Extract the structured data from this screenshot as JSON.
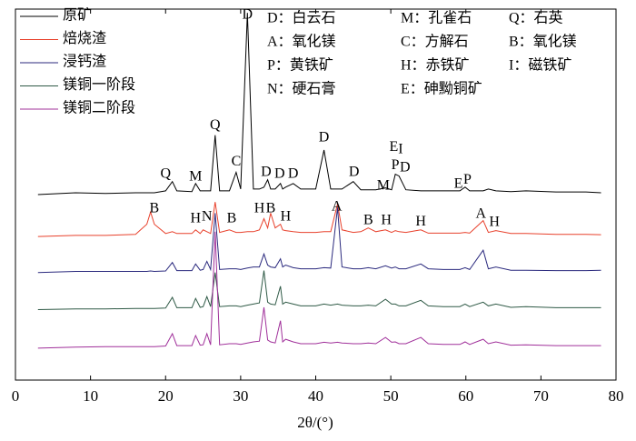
{
  "chart_data": {
    "type": "line",
    "xlabel": "2θ/(°)",
    "xlim": [
      0,
      80
    ],
    "ylim": [
      0,
      100
    ],
    "xticks": [
      0,
      10,
      20,
      30,
      40,
      50,
      60,
      70,
      80
    ],
    "legend": "upper left",
    "x": [
      3,
      8,
      12,
      16,
      17.5,
      18,
      18.5,
      20,
      20.9,
      21.5,
      23.5,
      24,
      24.6,
      25,
      25.5,
      26,
      26.6,
      27.2,
      28.5,
      29.4,
      30,
      30.9,
      31.7,
      32.5,
      33.1,
      33.6,
      34,
      34.6,
      35.3,
      35.6,
      36,
      37,
      38,
      40,
      41.1,
      42,
      42.9,
      43.5,
      45,
      46,
      47,
      48,
      49.3,
      50.1,
      50.6,
      51.1,
      52,
      54,
      55,
      57,
      59.2,
      59.9,
      60.5,
      62.3,
      63,
      64,
      66,
      68,
      72,
      76,
      78
    ],
    "series": [
      {
        "name": "原矿",
        "color": "#000000",
        "values": [
          50,
          50.5,
          50.3,
          50.5,
          50.5,
          50.5,
          50.5,
          51,
          53.5,
          51,
          50.8,
          53,
          51,
          51,
          51,
          51,
          66,
          51,
          51,
          56,
          51.5,
          99,
          51.5,
          51.5,
          52,
          54,
          51.5,
          51.5,
          53,
          51.5,
          52,
          53,
          51.5,
          51.5,
          62,
          51.5,
          51.5,
          51.5,
          53.5,
          51.3,
          51.3,
          51.3,
          51.8,
          51.3,
          55.5,
          55,
          51.3,
          51,
          51,
          51,
          51,
          52,
          51,
          51,
          51.5,
          51,
          50.8,
          51,
          50.7,
          50.7,
          50.5
        ]
      },
      {
        "name": "焙烧渣",
        "color": "#e8412c",
        "values": [
          38.7,
          39,
          39,
          39.3,
          42,
          45.3,
          42,
          39.5,
          40,
          39.5,
          39.5,
          40.5,
          39.5,
          40.5,
          40,
          39.5,
          48,
          39.8,
          40.5,
          39.8,
          39.8,
          40,
          40,
          40.5,
          43.5,
          41,
          45,
          41,
          42,
          40.5,
          40.3,
          40,
          39.8,
          39.8,
          40,
          40,
          47.5,
          40.5,
          39.8,
          40,
          41,
          40,
          40.5,
          39.8,
          40.3,
          40,
          39.8,
          40.5,
          39.6,
          39.6,
          39.6,
          39.8,
          39.6,
          43,
          39.8,
          40.3,
          39.5,
          39.5,
          39.3,
          39.3,
          39.2
        ]
      },
      {
        "name": "浸钙渣",
        "color": "#2b2a7e",
        "values": [
          29,
          29.3,
          29.3,
          29.3,
          29.3,
          29.4,
          29.3,
          29.4,
          31.7,
          29.5,
          29.5,
          31.3,
          29.6,
          29.8,
          32,
          29.8,
          45,
          29.8,
          30,
          30,
          29.8,
          30.2,
          30.5,
          30.5,
          34,
          31,
          30.5,
          30.3,
          32.7,
          30.5,
          31,
          30.3,
          30,
          30,
          30.3,
          30.2,
          46.5,
          30.5,
          30,
          30,
          30.3,
          30,
          30.8,
          30.2,
          30.5,
          30,
          30,
          31.3,
          30,
          29.8,
          29.8,
          30.3,
          29.8,
          35,
          30,
          30.5,
          29.6,
          29.6,
          29.5,
          29.5,
          29.6
        ]
      },
      {
        "name": "镁铜一阶段",
        "color": "#2f5a46",
        "values": [
          19,
          19.2,
          19.2,
          19.3,
          19.3,
          19.3,
          19.3,
          19.4,
          22.3,
          19.5,
          19.5,
          22,
          19.6,
          19.8,
          22.5,
          19.8,
          29,
          19.8,
          20,
          20,
          19.8,
          20.2,
          20.5,
          20.8,
          29.5,
          21,
          20.5,
          20.3,
          25.3,
          20.5,
          21,
          20.5,
          20,
          20,
          20.5,
          20.2,
          20.5,
          20.2,
          20,
          20,
          20.2,
          20,
          21.8,
          20.5,
          20.5,
          20,
          20,
          21.5,
          20,
          19.8,
          19.8,
          20.5,
          19.8,
          21,
          20,
          20.5,
          19.6,
          19.8,
          19.5,
          19.5,
          19.5
        ]
      },
      {
        "name": "镁铜二阶段",
        "color": "#a0309a",
        "values": [
          8.6,
          8.9,
          9,
          9,
          9,
          9,
          9,
          9.2,
          12.5,
          9.3,
          9.3,
          12,
          9.4,
          9.5,
          12.5,
          9.5,
          40,
          9.5,
          9.8,
          9.8,
          9.6,
          10,
          10.3,
          10.5,
          19.6,
          10.8,
          10.3,
          10,
          16,
          10.3,
          11,
          10.3,
          9.8,
          9.8,
          10.2,
          10,
          10.2,
          10,
          9.8,
          9.8,
          10,
          9.8,
          11.5,
          10.2,
          10.3,
          9.8,
          9.8,
          11.5,
          9.8,
          9.6,
          9.6,
          10.3,
          9.6,
          11,
          9.8,
          10.3,
          9.4,
          9.5,
          9.3,
          9.3,
          9.3
        ]
      }
    ],
    "annotations": [
      {
        "label": "Q",
        "x": 20,
        "y": 55.4
      },
      {
        "label": "M",
        "x": 24,
        "y": 54.7
      },
      {
        "label": "Q",
        "x": 26.6,
        "y": 68.6
      },
      {
        "label": "C",
        "x": 29.4,
        "y": 58.8
      },
      {
        "label": "D",
        "x": 30.9,
        "y": 98.3
      },
      {
        "label": "D",
        "x": 33.4,
        "y": 55.9
      },
      {
        "label": "D",
        "x": 35.2,
        "y": 55.4
      },
      {
        "label": "D",
        "x": 37,
        "y": 55.4
      },
      {
        "label": "D",
        "x": 41.1,
        "y": 65.2
      },
      {
        "label": "D",
        "x": 45.1,
        "y": 55.9
      },
      {
        "label": "M",
        "x": 49,
        "y": 52.2
      },
      {
        "label": "E",
        "x": 50.4,
        "y": 62.7
      },
      {
        "label": "I",
        "x": 51.3,
        "y": 62
      },
      {
        "label": "P",
        "x": 50.6,
        "y": 57.8
      },
      {
        "label": "D",
        "x": 51.9,
        "y": 57.1
      },
      {
        "label": "E",
        "x": 59,
        "y": 52.7
      },
      {
        "label": "P",
        "x": 60.2,
        "y": 53.9
      },
      {
        "label": "B",
        "x": 18.5,
        "y": 46.1
      },
      {
        "label": "H",
        "x": 24,
        "y": 43.4
      },
      {
        "label": "N",
        "x": 25.5,
        "y": 43.9
      },
      {
        "label": "B",
        "x": 28.8,
        "y": 43.4
      },
      {
        "label": "H",
        "x": 32.5,
        "y": 46.1
      },
      {
        "label": "B",
        "x": 34,
        "y": 46.1
      },
      {
        "label": "H",
        "x": 36,
        "y": 43.9
      },
      {
        "label": "A",
        "x": 42.8,
        "y": 46.6
      },
      {
        "label": "B",
        "x": 47,
        "y": 42.9
      },
      {
        "label": "H",
        "x": 49.4,
        "y": 42.9
      },
      {
        "label": "H",
        "x": 54,
        "y": 42.6
      },
      {
        "label": "A",
        "x": 62,
        "y": 44.6
      },
      {
        "label": "H",
        "x": 63.8,
        "y": 42.4
      }
    ],
    "phase_key": [
      [
        "D：白云石",
        "M：孔雀石",
        "Q：石英"
      ],
      [
        "A：氧化镁",
        "C：方解石",
        "B：氧化镁"
      ],
      [
        "P：黄铁矿",
        "H：赤铁矿",
        "I：磁铁矿"
      ],
      [
        "N：硬石膏",
        "E：砷黝铜矿"
      ]
    ]
  }
}
